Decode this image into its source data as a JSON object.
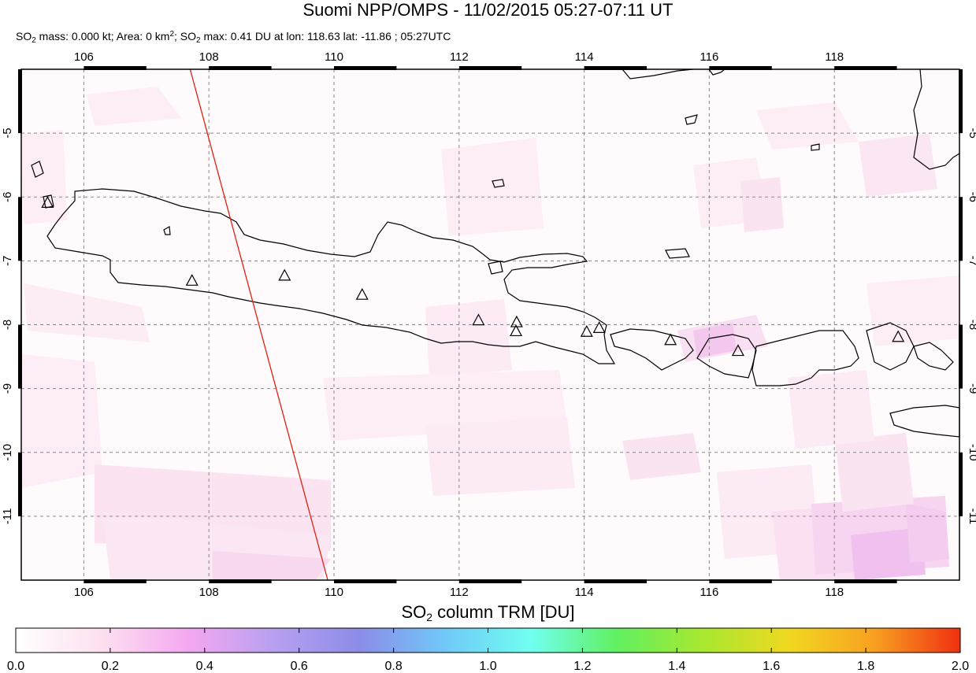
{
  "title": "Suomi NPP/OMPS - 11/02/2015 05:27-07:11 UT",
  "subtitle": {
    "mass_label": "SO",
    "mass_sub": "2",
    "mass_text": " mass: 0.000 kt; Area: 0 km",
    "area_sup": "2",
    "max_label": "; SO",
    "max_sub": "2",
    "max_text": " max: 0.41 DU at lon: 118.63 lat: -11.86 ; 05:27UTC"
  },
  "map": {
    "lon_range": [
      105,
      120
    ],
    "lat_range": [
      -12,
      -4
    ],
    "lon_ticks": [
      "106",
      "108",
      "110",
      "112",
      "114",
      "116",
      "118"
    ],
    "lat_ticks": [
      "-5",
      "-6",
      "-7",
      "-8",
      "-9",
      "-10",
      "-11"
    ],
    "grid": true,
    "orbit_track": {
      "color": "#e02010",
      "from": [
        107.7,
        -4.0
      ],
      "to": [
        109.9,
        -12.0
      ]
    },
    "volcanoes": [
      {
        "lon": 105.42,
        "lat": -6.1
      },
      {
        "lon": 107.73,
        "lat": -7.32
      },
      {
        "lon": 109.21,
        "lat": -7.24
      },
      {
        "lon": 110.45,
        "lat": -7.54
      },
      {
        "lon": 112.31,
        "lat": -7.94
      },
      {
        "lon": 112.92,
        "lat": -7.97
      },
      {
        "lon": 112.91,
        "lat": -8.11
      },
      {
        "lon": 114.04,
        "lat": -8.12
      },
      {
        "lon": 114.24,
        "lat": -8.06
      },
      {
        "lon": 115.38,
        "lat": -8.25
      },
      {
        "lon": 116.46,
        "lat": -8.42
      },
      {
        "lon": 119.02,
        "lat": -8.2
      }
    ]
  },
  "colorbar": {
    "title_main": "SO",
    "title_sub": "2",
    "title_rest": " column TRM [DU]",
    "ticks": [
      "0.0",
      "0.2",
      "0.4",
      "0.6",
      "0.8",
      "1.0",
      "1.2",
      "1.4",
      "1.6",
      "1.8",
      "2.0"
    ],
    "range": [
      0,
      2
    ],
    "colors": [
      "#ffffff",
      "#fde0f0",
      "#f4a8f0",
      "#b8a0f0",
      "#8c8ce8",
      "#70c8f8",
      "#70fff0",
      "#60f060",
      "#a8e830",
      "#f0d820",
      "#f8a020",
      "#f03010"
    ]
  }
}
